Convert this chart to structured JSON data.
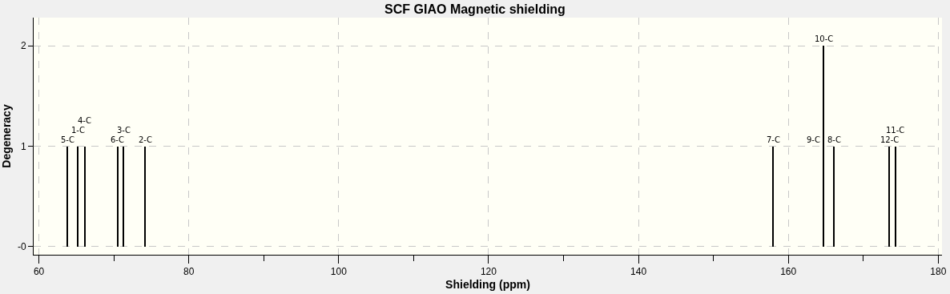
{
  "chart_data": {
    "type": "bar",
    "title": "SCF GIAO Magnetic shielding",
    "xlabel": "Shielding (ppm)",
    "ylabel": "Degeneracy",
    "x": [
      63.8,
      65.2,
      66.1,
      70.5,
      71.3,
      74.2,
      158.0,
      164.7,
      166.1,
      173.5,
      174.3
    ],
    "values": [
      1,
      1,
      1,
      1,
      1,
      1,
      1,
      2,
      1,
      1,
      1
    ],
    "color": "#000000",
    "annotations": [
      {
        "text": "5-C",
        "x": 63.8,
        "y": 1
      },
      {
        "text": "1-C",
        "x": 65.2,
        "y": 1
      },
      {
        "text": "4-C",
        "x": 66.1,
        "y": 1
      },
      {
        "text": "6-C",
        "x": 70.5,
        "y": 1
      },
      {
        "text": "3-C",
        "x": 71.3,
        "y": 1
      },
      {
        "text": "2-C",
        "x": 74.2,
        "y": 1
      },
      {
        "text": "7-C",
        "x": 158.0,
        "y": 1
      },
      {
        "text": "10-C",
        "x": 164.7,
        "y": 2
      },
      {
        "text": "9-C",
        "x": 164.7,
        "y": 1
      },
      {
        "text": "8-C",
        "x": 166.1,
        "y": 1
      },
      {
        "text": "12-C",
        "x": 173.5,
        "y": 1
      },
      {
        "text": "11-C",
        "x": 174.3,
        "y": 1
      }
    ],
    "xlim": [
      59.3,
      180.5
    ],
    "xticks": [
      60,
      {
        "value": 70,
        "label": null
      },
      80,
      {
        "value": 90,
        "label": null
      },
      100,
      {
        "value": 110,
        "label": null
      },
      120,
      {
        "value": 130,
        "label": null
      },
      140,
      {
        "value": 150,
        "label": null
      },
      160,
      {
        "value": 170,
        "label": null
      },
      180
    ],
    "ylim": [
      -0.08,
      2.28
    ],
    "yticks": [
      {
        "value": 0,
        "label": "-0"
      },
      1,
      2
    ],
    "grid": true
  }
}
